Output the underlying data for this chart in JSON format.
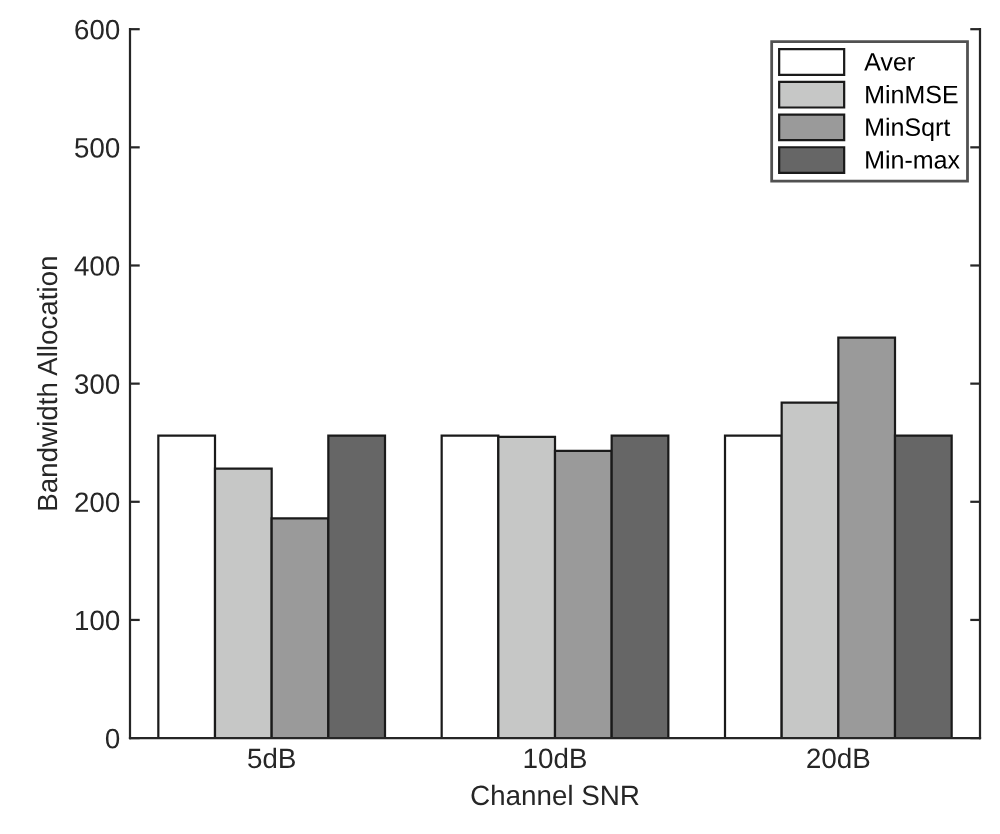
{
  "chart_data": {
    "type": "bar",
    "xlabel": "Channel SNR",
    "ylabel": "Bandwidth Allocation",
    "categories": [
      "5dB",
      "10dB",
      "20dB"
    ],
    "series": [
      {
        "name": "Aver",
        "color": "#ffffff",
        "values": [
          256,
          256,
          256
        ]
      },
      {
        "name": "MinMSE",
        "color": "#c6c7c6",
        "values": [
          228,
          255,
          284
        ]
      },
      {
        "name": "MinSqrt",
        "color": "#9a9a9a",
        "values": [
          186,
          243,
          339
        ]
      },
      {
        "name": "Min-max",
        "color": "#666666",
        "values": [
          256,
          256,
          256
        ]
      }
    ],
    "ylim": [
      0,
      600
    ],
    "yticks": [
      0,
      100,
      200,
      300,
      400,
      500,
      600
    ],
    "grid": false,
    "legend": "top right"
  }
}
